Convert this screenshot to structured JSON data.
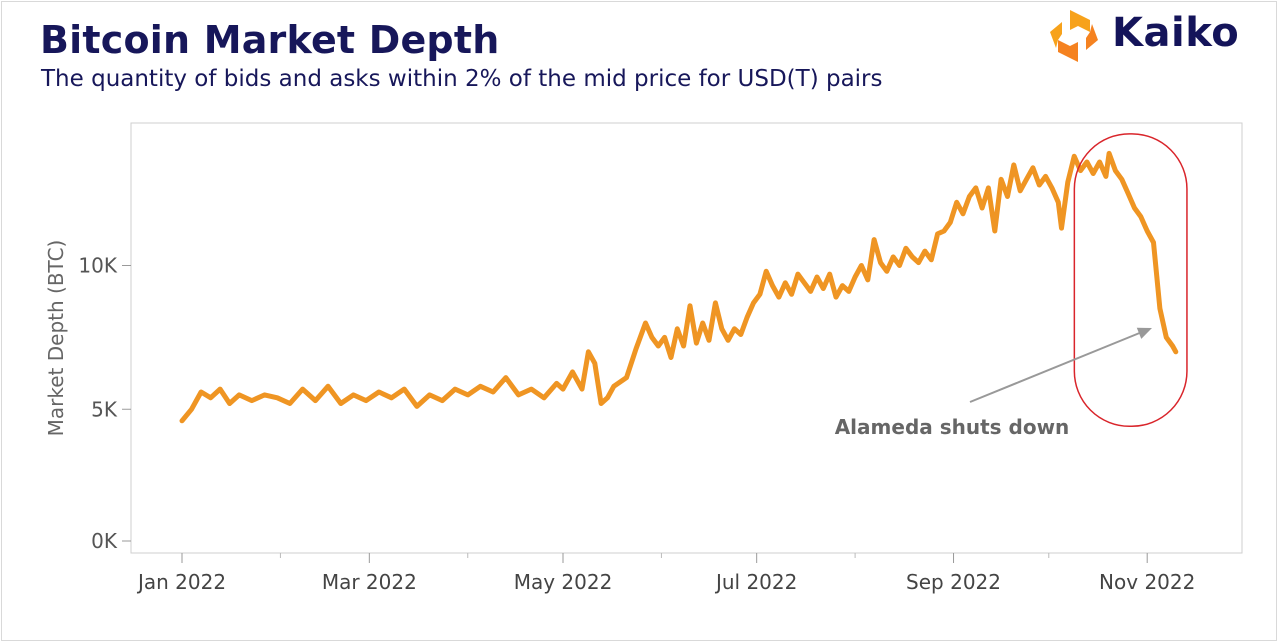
{
  "header": {
    "title": "Bitcoin Market Depth",
    "subtitle": "The quantity of bids and asks within 2% of the mid price for USD(T) pairs",
    "brand": "Kaiko"
  },
  "colors": {
    "line": "#ef9523",
    "title": "#17175a",
    "highlight": "#d9252b",
    "annotation": "#666666",
    "axis": "#9a9a9a"
  },
  "chart_data": {
    "type": "line",
    "ylabel": "Market Depth (BTC)",
    "ylim": [
      0,
      14500
    ],
    "yticks": [
      {
        "value": 0,
        "label": "0K"
      },
      {
        "value": 5000,
        "label": "5K"
      },
      {
        "value": 10000,
        "label": "10K"
      }
    ],
    "xticks": [
      {
        "day": 0,
        "label": "Jan 2022"
      },
      {
        "day": 59,
        "label": "Mar 2022"
      },
      {
        "day": 120,
        "label": "May 2022"
      },
      {
        "day": 181,
        "label": "Jul 2022"
      },
      {
        "day": 243,
        "label": "Sep 2022"
      },
      {
        "day": 304,
        "label": "Nov 2022"
      }
    ],
    "xminor": [
      31,
      90,
      151,
      212,
      273
    ],
    "grid": false,
    "annotation": {
      "text": "Alameda shuts down",
      "target_day": 304
    },
    "highlight": {
      "day_start": 282,
      "day_end": 314,
      "value_min": 5800,
      "value_max": 14300
    },
    "series": [
      {
        "points": [
          [
            0,
            4600
          ],
          [
            3,
            5000
          ],
          [
            6,
            5600
          ],
          [
            9,
            5400
          ],
          [
            12,
            5700
          ],
          [
            15,
            5200
          ],
          [
            18,
            5500
          ],
          [
            22,
            5300
          ],
          [
            26,
            5500
          ],
          [
            30,
            5400
          ],
          [
            34,
            5200
          ],
          [
            38,
            5700
          ],
          [
            42,
            5300
          ],
          [
            46,
            5800
          ],
          [
            50,
            5200
          ],
          [
            54,
            5500
          ],
          [
            58,
            5300
          ],
          [
            62,
            5600
          ],
          [
            66,
            5400
          ],
          [
            70,
            5700
          ],
          [
            74,
            5100
          ],
          [
            78,
            5500
          ],
          [
            82,
            5300
          ],
          [
            86,
            5700
          ],
          [
            90,
            5500
          ],
          [
            94,
            5800
          ],
          [
            98,
            5600
          ],
          [
            102,
            6100
          ],
          [
            106,
            5500
          ],
          [
            110,
            5700
          ],
          [
            114,
            5400
          ],
          [
            118,
            5900
          ],
          [
            120,
            5700
          ],
          [
            123,
            6300
          ],
          [
            126,
            5700
          ],
          [
            128,
            7000
          ],
          [
            130,
            6600
          ],
          [
            132,
            5200
          ],
          [
            134,
            5400
          ],
          [
            136,
            5800
          ],
          [
            140,
            6100
          ],
          [
            143,
            7100
          ],
          [
            146,
            8000
          ],
          [
            148,
            7500
          ],
          [
            150,
            7200
          ],
          [
            152,
            7500
          ],
          [
            154,
            6800
          ],
          [
            156,
            7800
          ],
          [
            158,
            7200
          ],
          [
            160,
            8600
          ],
          [
            162,
            7300
          ],
          [
            164,
            8000
          ],
          [
            166,
            7400
          ],
          [
            168,
            8700
          ],
          [
            170,
            7800
          ],
          [
            172,
            7400
          ],
          [
            174,
            7800
          ],
          [
            176,
            7600
          ],
          [
            178,
            8200
          ],
          [
            180,
            8700
          ],
          [
            182,
            9000
          ],
          [
            184,
            9800
          ],
          [
            186,
            9300
          ],
          [
            188,
            8900
          ],
          [
            190,
            9400
          ],
          [
            192,
            9000
          ],
          [
            194,
            9700
          ],
          [
            196,
            9400
          ],
          [
            198,
            9100
          ],
          [
            200,
            9600
          ],
          [
            202,
            9200
          ],
          [
            204,
            9700
          ],
          [
            206,
            8900
          ],
          [
            208,
            9300
          ],
          [
            210,
            9100
          ],
          [
            212,
            9600
          ],
          [
            214,
            10000
          ],
          [
            216,
            9500
          ],
          [
            218,
            10900
          ],
          [
            220,
            10100
          ],
          [
            222,
            9800
          ],
          [
            224,
            10300
          ],
          [
            226,
            10000
          ],
          [
            228,
            10600
          ],
          [
            230,
            10300
          ],
          [
            232,
            10100
          ],
          [
            234,
            10500
          ],
          [
            236,
            10200
          ],
          [
            238,
            11100
          ],
          [
            240,
            11200
          ],
          [
            242,
            11500
          ],
          [
            244,
            12200
          ],
          [
            246,
            11800
          ],
          [
            248,
            12400
          ],
          [
            250,
            12700
          ],
          [
            252,
            12000
          ],
          [
            254,
            12700
          ],
          [
            256,
            11200
          ],
          [
            258,
            13000
          ],
          [
            260,
            12400
          ],
          [
            262,
            13500
          ],
          [
            264,
            12600
          ],
          [
            266,
            13000
          ],
          [
            268,
            13400
          ],
          [
            270,
            12800
          ],
          [
            272,
            13100
          ],
          [
            274,
            12700
          ],
          [
            276,
            12200
          ],
          [
            277,
            11300
          ],
          [
            279,
            12900
          ],
          [
            281,
            13800
          ],
          [
            283,
            13300
          ],
          [
            285,
            13600
          ],
          [
            287,
            13200
          ],
          [
            289,
            13600
          ],
          [
            291,
            13100
          ],
          [
            292,
            13900
          ],
          [
            294,
            13300
          ],
          [
            296,
            13000
          ],
          [
            298,
            12500
          ],
          [
            300,
            12000
          ],
          [
            302,
            11700
          ],
          [
            304,
            11200
          ],
          [
            306,
            10800
          ],
          [
            308,
            8500
          ],
          [
            310,
            7500
          ],
          [
            312,
            7200
          ],
          [
            313,
            7000
          ]
        ]
      }
    ]
  }
}
